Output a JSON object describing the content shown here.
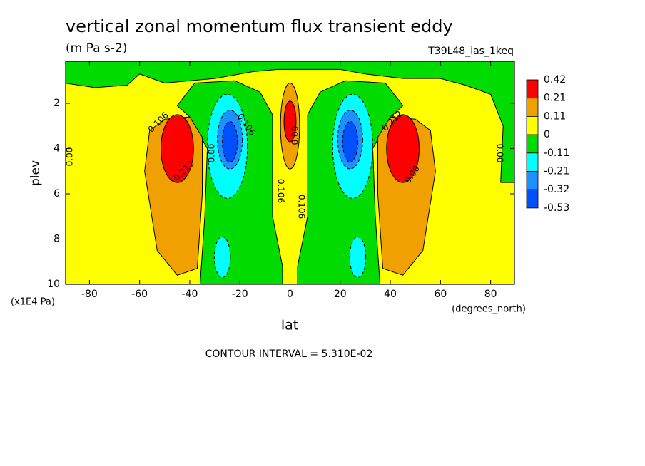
{
  "chart_data": {
    "type": "contour",
    "title": "vertical zonal momentum flux transient eddy",
    "subtitle": "(m Pa s-2)",
    "run_label": "T39L48_ias_1keq",
    "x_label": "lat",
    "x_unit": "(degrees_north)",
    "y_label": "plev",
    "y_unit": "(x1E4 Pa)",
    "footnote": "CONTOUR INTERVAL = 5.310E-02",
    "xlim": [
      -89.5,
      89.5
    ],
    "xticks": [
      -80,
      -60,
      -40,
      -20,
      0,
      20,
      40,
      60,
      80
    ],
    "ylim": [
      10,
      0.14
    ],
    "yticks": [
      2,
      4,
      6,
      8,
      10
    ],
    "colorbar": {
      "levels": [
        0.42,
        0.21,
        0.11,
        0,
        -0.11,
        -0.21,
        -0.32,
        -0.53
      ],
      "colors": [
        "#ff0000",
        "#f0a000",
        "#ffff00",
        "#00dc00",
        "#00ffff",
        "#1e90ff",
        "#0050ff"
      ]
    },
    "contour_labels": [
      0.106,
      0.212,
      {
        "value": 0,
        "label": "0.00"
      },
      0.106,
      {
        "value": 0,
        "label": "0.00"
      },
      0.106,
      {
        "value": 0,
        "label": "0.00"
      },
      0.106,
      0.212,
      {
        "value": 0,
        "label": "0.00"
      },
      {
        "value": 0,
        "label": "0.00"
      }
    ]
  }
}
